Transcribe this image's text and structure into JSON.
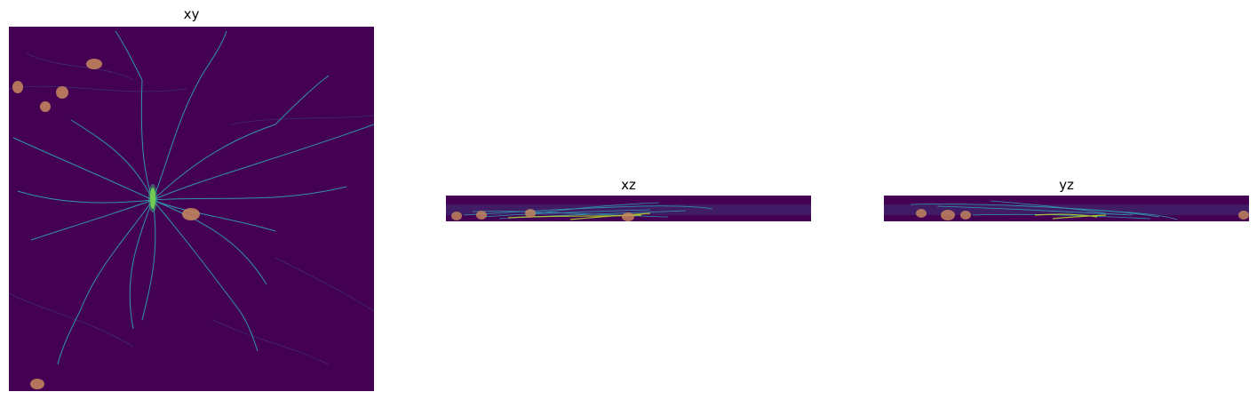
{
  "colors": {
    "background": "#440154",
    "neurite": "#2fa4b6",
    "neurite_bright": "#b5de2b",
    "soma_overlay": "#c98a5e"
  },
  "panels": [
    {
      "title": "xy"
    },
    {
      "title": "xz"
    },
    {
      "title": "yz"
    }
  ]
}
